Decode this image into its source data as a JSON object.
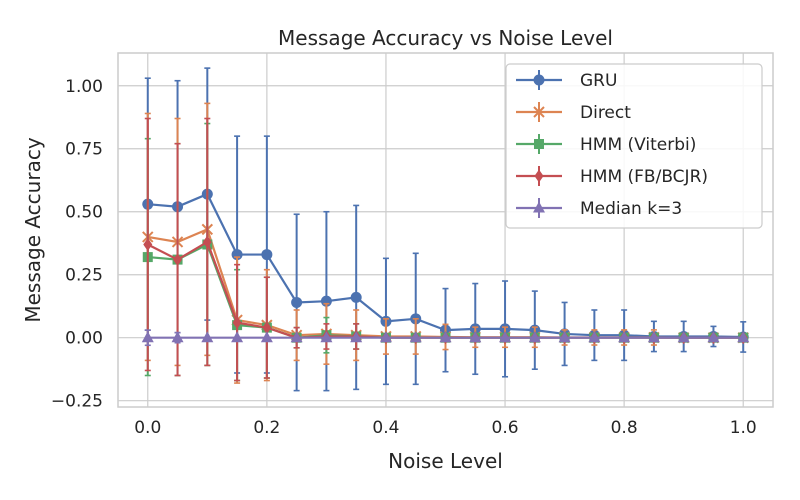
{
  "chart_data": {
    "type": "line",
    "title": "Message Accuracy vs Noise Level",
    "xlabel": "Noise Level",
    "ylabel": "Message Accuracy",
    "xlim": [
      -0.05,
      1.05
    ],
    "ylim": [
      -0.275,
      1.13
    ],
    "xticks": [
      0.0,
      0.2,
      0.4,
      0.6,
      0.8,
      1.0
    ],
    "xtick_labels": [
      "0.0",
      "0.2",
      "0.4",
      "0.6",
      "0.8",
      "1.0"
    ],
    "yticks": [
      -0.25,
      0.0,
      0.25,
      0.5,
      0.75,
      1.0
    ],
    "ytick_labels": [
      "−0.25",
      "0.00",
      "0.25",
      "0.50",
      "0.75",
      "1.00"
    ],
    "grid": true,
    "legend_position": "top-right",
    "x": [
      0.0,
      0.05,
      0.1,
      0.15,
      0.2,
      0.25,
      0.3,
      0.35,
      0.4,
      0.45,
      0.5,
      0.55,
      0.6,
      0.65,
      0.7,
      0.75,
      0.8,
      0.85,
      0.9,
      0.95,
      1.0
    ],
    "series": [
      {
        "name": "GRU",
        "color": "#4c72b0",
        "marker": "circle",
        "values": [
          0.53,
          0.52,
          0.57,
          0.33,
          0.33,
          0.14,
          0.145,
          0.16,
          0.065,
          0.075,
          0.03,
          0.035,
          0.035,
          0.03,
          0.015,
          0.01,
          0.01,
          0.005,
          0.005,
          0.005,
          0.003
        ],
        "errors": [
          0.5,
          0.5,
          0.5,
          0.47,
          0.47,
          0.35,
          0.355,
          0.365,
          0.25,
          0.26,
          0.165,
          0.18,
          0.19,
          0.155,
          0.125,
          0.1,
          0.1,
          0.06,
          0.06,
          0.04,
          0.06
        ]
      },
      {
        "name": "Direct",
        "color": "#dd8452",
        "marker": "x",
        "values": [
          0.4,
          0.38,
          0.43,
          0.07,
          0.05,
          0.01,
          0.015,
          0.01,
          0.005,
          0.005,
          0.003,
          0.002,
          0.002,
          0.002,
          0.001,
          0.001,
          0.001,
          0.001,
          0.0,
          0.0,
          0.0
        ],
        "errors": [
          0.49,
          0.49,
          0.5,
          0.25,
          0.22,
          0.1,
          0.12,
          0.1,
          0.07,
          0.07,
          0.05,
          0.04,
          0.04,
          0.04,
          0.03,
          0.03,
          0.03,
          0.03,
          0.0,
          0.0,
          0.0
        ]
      },
      {
        "name": "HMM (Viterbi)",
        "color": "#55a868",
        "marker": "square",
        "values": [
          0.32,
          0.31,
          0.37,
          0.05,
          0.04,
          0.0,
          0.01,
          0.005,
          0.0,
          0.0,
          0.0,
          0.0,
          0.0,
          0.0,
          0.0,
          0.0,
          0.0,
          0.0,
          0.0,
          0.0,
          0.0
        ],
        "errors": [
          0.47,
          0.46,
          0.48,
          0.22,
          0.2,
          0.04,
          0.07,
          0.05,
          0.0,
          0.0,
          0.0,
          0.0,
          0.0,
          0.0,
          0.0,
          0.0,
          0.0,
          0.0,
          0.0,
          0.0,
          0.0
        ]
      },
      {
        "name": "HMM (FB/BCJR)",
        "color": "#c44e52",
        "marker": "diamond",
        "values": [
          0.37,
          0.31,
          0.38,
          0.06,
          0.04,
          0.0,
          0.005,
          0.005,
          0.0,
          0.0,
          0.0,
          0.0,
          0.0,
          0.0,
          0.0,
          0.0,
          0.0,
          0.0,
          0.0,
          0.0,
          0.0
        ],
        "errors": [
          0.5,
          0.46,
          0.49,
          0.23,
          0.2,
          0.04,
          0.05,
          0.05,
          0.0,
          0.0,
          0.0,
          0.0,
          0.0,
          0.0,
          0.0,
          0.0,
          0.0,
          0.0,
          0.0,
          0.0,
          0.0
        ]
      },
      {
        "name": "Median k=3",
        "color": "#8172b3",
        "marker": "triangle",
        "values": [
          0.0,
          0.0,
          0.0,
          0.0,
          0.0,
          0.0,
          0.0,
          0.0,
          0.0,
          0.0,
          0.0,
          0.0,
          0.0,
          0.0,
          0.0,
          0.0,
          0.0,
          0.0,
          0.0,
          0.0,
          0.0
        ],
        "errors": [
          0.03,
          0.02,
          0.0,
          0.0,
          0.0,
          0.0,
          0.0,
          0.0,
          0.0,
          0.0,
          0.0,
          0.0,
          0.0,
          0.0,
          0.0,
          0.0,
          0.0,
          0.0,
          0.0,
          0.0,
          0.0
        ]
      }
    ]
  }
}
